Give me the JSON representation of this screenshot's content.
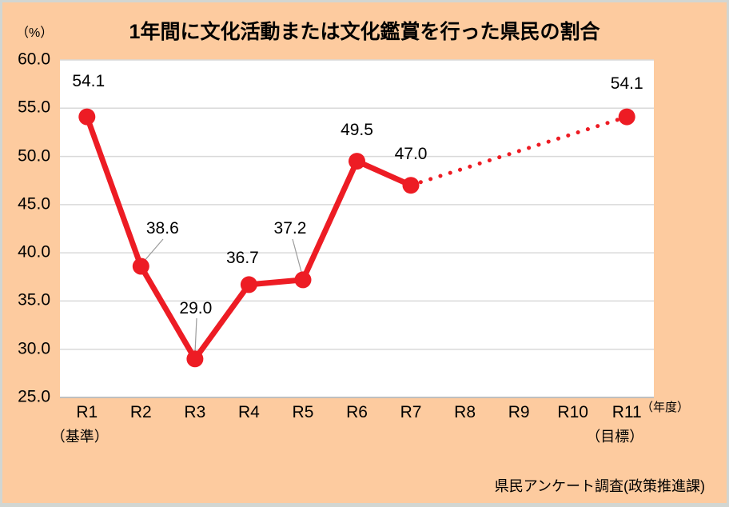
{
  "title": "1年間に文化活動または文化鑑賞を行った県民の割合",
  "y_axis": {
    "unit_label": "（%）"
  },
  "x_axis": {
    "unit_label": "（年度）"
  },
  "source_note": "県民アンケート調査(政策推進課)",
  "colors": {
    "background": "#FDCB9F",
    "plot_background": "#FFFFFF",
    "series_red": "#ED1C24",
    "gridline": "#D9D9D9",
    "axis_line": "#BFBFBF",
    "leader_line": "#9B9B9B",
    "text": "#000000",
    "frame_border": "#D2D6D2"
  },
  "chart_data": {
    "type": "line",
    "title": "1年間に文化活動または文化鑑賞を行った県民の割合",
    "ylabel": "（%）",
    "xlabel": "（年度）",
    "ylim": [
      25.0,
      60.0
    ],
    "ytick_interval": 5.0,
    "ytick_labels": [
      "60.0",
      "55.0",
      "50.0",
      "45.0",
      "40.0",
      "35.0",
      "30.0",
      "25.0"
    ],
    "grid": true,
    "legend_position": "none",
    "categories": [
      "R1",
      "R2",
      "R3",
      "R4",
      "R5",
      "R6",
      "R7",
      "R8",
      "R9",
      "R10",
      "R11"
    ],
    "category_notes": [
      {
        "category": "R1",
        "note": "（基準）"
      },
      {
        "category": "R11",
        "note": "（目標）"
      }
    ],
    "points": [
      {
        "category": "R1",
        "value": 54.1,
        "label": "54.1"
      },
      {
        "category": "R2",
        "value": 38.6,
        "label": "38.6"
      },
      {
        "category": "R3",
        "value": 29.0,
        "label": "29.0"
      },
      {
        "category": "R4",
        "value": 36.7,
        "label": "36.7"
      },
      {
        "category": "R5",
        "value": 37.2,
        "label": "37.2"
      },
      {
        "category": "R6",
        "value": 49.5,
        "label": "49.5"
      },
      {
        "category": "R7",
        "value": 47.0,
        "label": "47.0"
      },
      {
        "category": "R11",
        "value": 54.1,
        "label": "54.1"
      }
    ],
    "segments": [
      {
        "style": "solid",
        "through": [
          "R1",
          "R2",
          "R3",
          "R4",
          "R5",
          "R6",
          "R7"
        ]
      },
      {
        "style": "dotted",
        "through": [
          "R7",
          "R11"
        ]
      }
    ]
  }
}
